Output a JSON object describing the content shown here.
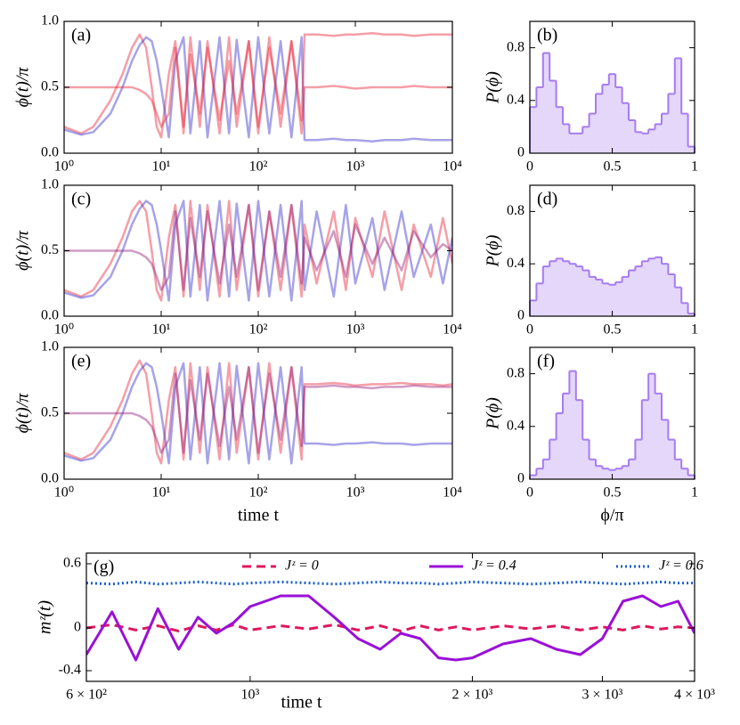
{
  "chart_data": [
    {
      "type": "line",
      "panel_label": "(a)",
      "ylabel": "ϕ(t)/π",
      "xscale": "log",
      "xlim": [
        1,
        10000
      ],
      "ylim": [
        0,
        1
      ],
      "xticks": [
        {
          "value": 1,
          "label": "10⁰"
        },
        {
          "value": 10,
          "label": "10¹"
        },
        {
          "value": 100,
          "label": "10²"
        },
        {
          "value": 1000,
          "label": "10³"
        },
        {
          "value": 10000,
          "label": "10⁴"
        }
      ],
      "yticks": [
        {
          "value": 0,
          "label": "0.0"
        },
        {
          "value": 0.5,
          "label": "0.5"
        },
        {
          "value": 1,
          "label": "1.0"
        }
      ],
      "x": [
        1,
        1.5,
        2,
        3,
        4,
        5,
        6,
        7,
        8,
        9,
        10,
        12,
        14,
        17,
        20,
        25,
        30,
        40,
        50,
        60,
        80,
        100,
        130,
        170,
        220,
        280,
        300,
        400,
        600,
        800,
        1000,
        1500,
        2000,
        3000,
        4000,
        6000,
        8000,
        10000
      ],
      "series": [
        {
          "color": "#e8283c",
          "values": [
            0.2,
            0.15,
            0.2,
            0.4,
            0.6,
            0.8,
            0.9,
            0.8,
            0.5,
            0.2,
            0.12,
            0.6,
            0.85,
            0.15,
            0.88,
            0.2,
            0.85,
            0.15,
            0.88,
            0.2,
            0.85,
            0.15,
            0.88,
            0.2,
            0.85,
            0.15,
            0.5,
            0.5,
            0.51,
            0.5,
            0.49,
            0.5,
            0.5,
            0.5,
            0.51,
            0.5,
            0.5,
            0.5
          ]
        },
        {
          "color": "#3a32cc",
          "values": [
            0.18,
            0.14,
            0.16,
            0.3,
            0.5,
            0.7,
            0.82,
            0.88,
            0.85,
            0.7,
            0.5,
            0.12,
            0.7,
            0.88,
            0.15,
            0.85,
            0.12,
            0.88,
            0.15,
            0.86,
            0.12,
            0.88,
            0.15,
            0.85,
            0.12,
            0.88,
            0.1,
            0.1,
            0.11,
            0.1,
            0.1,
            0.09,
            0.1,
            0.1,
            0.11,
            0.1,
            0.1,
            0.1
          ]
        },
        {
          "color": "#e8283c",
          "values": [
            0.5,
            0.5,
            0.5,
            0.5,
            0.5,
            0.5,
            0.48,
            0.45,
            0.4,
            0.3,
            0.2,
            0.3,
            0.8,
            0.2,
            0.75,
            0.3,
            0.8,
            0.25,
            0.7,
            0.3,
            0.85,
            0.2,
            0.8,
            0.3,
            0.85,
            0.25,
            0.9,
            0.9,
            0.89,
            0.9,
            0.9,
            0.91,
            0.9,
            0.9,
            0.89,
            0.9,
            0.9,
            0.9
          ]
        }
      ]
    },
    {
      "type": "histogram",
      "panel_label": "(b)",
      "ylabel": "P(ϕ)",
      "xlim": [
        0,
        1
      ],
      "ylim": [
        0,
        1
      ],
      "xticks": [
        0,
        0.5,
        1
      ],
      "yticks": [
        0,
        0.4,
        0.8
      ],
      "color": "#a67cf0",
      "bins": [
        0,
        0.04,
        0.08,
        0.12,
        0.16,
        0.2,
        0.24,
        0.28,
        0.32,
        0.36,
        0.4,
        0.44,
        0.48,
        0.52,
        0.56,
        0.6,
        0.64,
        0.68,
        0.72,
        0.76,
        0.8,
        0.84,
        0.88,
        0.92,
        0.96,
        1
      ],
      "values": [
        0.35,
        0.5,
        0.76,
        0.55,
        0.35,
        0.22,
        0.15,
        0.15,
        0.2,
        0.3,
        0.45,
        0.52,
        0.6,
        0.5,
        0.38,
        0.25,
        0.16,
        0.15,
        0.18,
        0.22,
        0.3,
        0.45,
        0.72,
        0.3,
        0.05
      ]
    },
    {
      "type": "line",
      "panel_label": "(c)",
      "ylabel": "ϕ(t)/π",
      "xscale": "log",
      "xlim": [
        1,
        10000
      ],
      "ylim": [
        0,
        1
      ],
      "xticks": [
        {
          "value": 1,
          "label": "10⁰"
        },
        {
          "value": 10,
          "label": "10¹"
        },
        {
          "value": 100,
          "label": "10²"
        },
        {
          "value": 1000,
          "label": "10³"
        },
        {
          "value": 10000,
          "label": "10⁴"
        }
      ],
      "yticks": [
        {
          "value": 0,
          "label": "0.0"
        },
        {
          "value": 0.5,
          "label": "0.5"
        },
        {
          "value": 1,
          "label": "1.0"
        }
      ],
      "x": [
        1,
        1.5,
        2,
        3,
        4,
        5,
        6,
        7,
        8,
        9,
        10,
        12,
        14,
        17,
        20,
        25,
        30,
        40,
        50,
        60,
        80,
        100,
        130,
        170,
        220,
        280,
        300,
        400,
        600,
        800,
        1000,
        1500,
        2000,
        3000,
        4000,
        6000,
        8000,
        10000
      ],
      "series": [
        {
          "color": "#e8283c",
          "values": [
            0.2,
            0.15,
            0.2,
            0.4,
            0.6,
            0.8,
            0.88,
            0.8,
            0.5,
            0.2,
            0.12,
            0.6,
            0.85,
            0.15,
            0.88,
            0.2,
            0.85,
            0.15,
            0.88,
            0.2,
            0.85,
            0.15,
            0.8,
            0.2,
            0.85,
            0.15,
            0.7,
            0.25,
            0.8,
            0.2,
            0.75,
            0.3,
            0.8,
            0.2,
            0.7,
            0.3,
            0.75,
            0.4
          ]
        },
        {
          "color": "#3a32cc",
          "values": [
            0.18,
            0.14,
            0.16,
            0.3,
            0.5,
            0.7,
            0.82,
            0.88,
            0.85,
            0.7,
            0.5,
            0.12,
            0.7,
            0.88,
            0.15,
            0.85,
            0.12,
            0.88,
            0.15,
            0.86,
            0.12,
            0.88,
            0.15,
            0.85,
            0.12,
            0.88,
            0.2,
            0.8,
            0.15,
            0.85,
            0.25,
            0.75,
            0.2,
            0.8,
            0.3,
            0.7,
            0.25,
            0.6
          ]
        },
        {
          "color": "#9a1e7a",
          "values": [
            0.5,
            0.5,
            0.5,
            0.5,
            0.5,
            0.5,
            0.48,
            0.45,
            0.4,
            0.3,
            0.2,
            0.3,
            0.8,
            0.2,
            0.75,
            0.3,
            0.8,
            0.25,
            0.7,
            0.3,
            0.85,
            0.2,
            0.8,
            0.3,
            0.85,
            0.25,
            0.6,
            0.35,
            0.65,
            0.3,
            0.7,
            0.4,
            0.6,
            0.35,
            0.65,
            0.45,
            0.55,
            0.5
          ]
        }
      ]
    },
    {
      "type": "histogram",
      "panel_label": "(d)",
      "ylabel": "P(ϕ)",
      "xlim": [
        0,
        1
      ],
      "ylim": [
        0,
        1
      ],
      "xticks": [
        0,
        0.5,
        1
      ],
      "yticks": [
        0,
        0.4,
        0.8
      ],
      "color": "#a67cf0",
      "bins": [
        0,
        0.04,
        0.08,
        0.12,
        0.16,
        0.2,
        0.24,
        0.28,
        0.32,
        0.36,
        0.4,
        0.44,
        0.48,
        0.52,
        0.56,
        0.6,
        0.64,
        0.68,
        0.72,
        0.76,
        0.8,
        0.84,
        0.88,
        0.92,
        0.96,
        1
      ],
      "values": [
        0.12,
        0.25,
        0.38,
        0.42,
        0.44,
        0.42,
        0.4,
        0.38,
        0.35,
        0.3,
        0.28,
        0.25,
        0.24,
        0.26,
        0.3,
        0.35,
        0.38,
        0.42,
        0.44,
        0.45,
        0.4,
        0.32,
        0.22,
        0.1,
        0.02
      ]
    },
    {
      "type": "line",
      "panel_label": "(e)",
      "ylabel": "ϕ(t)/π",
      "xlabel": "time t",
      "xscale": "log",
      "xlim": [
        1,
        10000
      ],
      "ylim": [
        0,
        1
      ],
      "xticks": [
        {
          "value": 1,
          "label": "10⁰"
        },
        {
          "value": 10,
          "label": "10¹"
        },
        {
          "value": 100,
          "label": "10²"
        },
        {
          "value": 1000,
          "label": "10³"
        },
        {
          "value": 10000,
          "label": "10⁴"
        }
      ],
      "yticks": [
        {
          "value": 0,
          "label": "0.0"
        },
        {
          "value": 0.5,
          "label": "0.5"
        },
        {
          "value": 1,
          "label": "1.0"
        }
      ],
      "x": [
        1,
        1.5,
        2,
        3,
        4,
        5,
        6,
        7,
        8,
        9,
        10,
        12,
        14,
        17,
        20,
        25,
        30,
        40,
        50,
        60,
        80,
        100,
        130,
        170,
        220,
        280,
        300,
        400,
        600,
        800,
        1000,
        1500,
        2000,
        3000,
        4000,
        6000,
        8000,
        10000
      ],
      "series": [
        {
          "color": "#e8283c",
          "values": [
            0.2,
            0.15,
            0.2,
            0.4,
            0.6,
            0.8,
            0.9,
            0.8,
            0.5,
            0.2,
            0.12,
            0.6,
            0.85,
            0.15,
            0.88,
            0.2,
            0.85,
            0.15,
            0.88,
            0.2,
            0.85,
            0.15,
            0.88,
            0.2,
            0.85,
            0.15,
            0.72,
            0.72,
            0.73,
            0.72,
            0.71,
            0.72,
            0.72,
            0.73,
            0.72,
            0.72,
            0.71,
            0.72
          ]
        },
        {
          "color": "#3a32cc",
          "values": [
            0.18,
            0.14,
            0.16,
            0.3,
            0.5,
            0.7,
            0.82,
            0.88,
            0.85,
            0.7,
            0.5,
            0.12,
            0.7,
            0.88,
            0.15,
            0.85,
            0.12,
            0.88,
            0.15,
            0.86,
            0.12,
            0.88,
            0.15,
            0.85,
            0.12,
            0.85,
            0.27,
            0.27,
            0.26,
            0.27,
            0.27,
            0.28,
            0.27,
            0.27,
            0.26,
            0.27,
            0.27,
            0.27
          ]
        },
        {
          "color": "#9a1e7a",
          "values": [
            0.5,
            0.5,
            0.5,
            0.5,
            0.5,
            0.5,
            0.48,
            0.45,
            0.4,
            0.3,
            0.2,
            0.3,
            0.8,
            0.2,
            0.75,
            0.3,
            0.8,
            0.25,
            0.7,
            0.3,
            0.85,
            0.2,
            0.8,
            0.3,
            0.85,
            0.25,
            0.7,
            0.7,
            0.71,
            0.7,
            0.7,
            0.69,
            0.7,
            0.7,
            0.71,
            0.7,
            0.7,
            0.7
          ]
        }
      ]
    },
    {
      "type": "histogram",
      "panel_label": "(f)",
      "ylabel": "P(ϕ)",
      "xlabel": "ϕ/π",
      "xlim": [
        0,
        1
      ],
      "ylim": [
        0,
        1
      ],
      "xticks": [
        0,
        0.5,
        1
      ],
      "yticks": [
        0,
        0.4,
        0.8
      ],
      "color": "#a67cf0",
      "bins": [
        0,
        0.04,
        0.08,
        0.12,
        0.16,
        0.2,
        0.24,
        0.28,
        0.32,
        0.36,
        0.4,
        0.44,
        0.48,
        0.52,
        0.56,
        0.6,
        0.64,
        0.68,
        0.72,
        0.76,
        0.8,
        0.84,
        0.88,
        0.92,
        0.96,
        1
      ],
      "values": [
        0.03,
        0.08,
        0.15,
        0.3,
        0.5,
        0.65,
        0.82,
        0.6,
        0.3,
        0.15,
        0.1,
        0.08,
        0.07,
        0.08,
        0.1,
        0.15,
        0.3,
        0.6,
        0.8,
        0.65,
        0.45,
        0.3,
        0.15,
        0.08,
        0.03
      ]
    },
    {
      "type": "line",
      "panel_label": "(g)",
      "ylabel": "mᶻ(t)",
      "xlabel": "time t",
      "xscale": "log",
      "xlim": [
        600,
        4000
      ],
      "ylim": [
        -0.5,
        0.7
      ],
      "legend": "upper center",
      "xticks": [
        {
          "value": 600,
          "label": "6 × 10²"
        },
        {
          "value": 1000,
          "label": "10³"
        },
        {
          "value": 2000,
          "label": "2 × 10³"
        },
        {
          "value": 3000,
          "label": "3 × 10³"
        },
        {
          "value": 4000,
          "label": "4 × 10³"
        }
      ],
      "yticks": [
        0.6,
        0,
        -0.4
      ],
      "x": [
        600,
        650,
        700,
        750,
        800,
        850,
        900,
        950,
        1000,
        1100,
        1200,
        1300,
        1400,
        1500,
        1600,
        1700,
        1800,
        1900,
        2000,
        2200,
        2400,
        2600,
        2800,
        3000,
        3200,
        3400,
        3600,
        3800,
        4000
      ],
      "series": [
        {
          "name": "Jᶻ = 0",
          "color": "#e0185a",
          "linestyle": "dashed",
          "values": [
            0,
            0.03,
            -0.02,
            0.02,
            -0.03,
            0.02,
            -0.02,
            0.03,
            -0.02,
            0.02,
            -0.01,
            0.03,
            -0.02,
            0.02,
            -0.03,
            0.02,
            -0.02,
            0.01,
            -0.02,
            0.02,
            -0.01,
            0.02,
            -0.02,
            0.01,
            -0.02,
            0.02,
            -0.01,
            0.01,
            0
          ]
        },
        {
          "name": "Jᶻ = 0.4",
          "color": "#9a10d8",
          "linestyle": "solid",
          "values": [
            -0.25,
            0.15,
            -0.3,
            0.18,
            -0.2,
            0.1,
            -0.05,
            0.05,
            0.2,
            0.3,
            0.3,
            0.1,
            -0.1,
            -0.2,
            -0.05,
            -0.1,
            -0.28,
            -0.3,
            -0.28,
            -0.15,
            -0.1,
            -0.2,
            -0.25,
            -0.1,
            0.25,
            0.3,
            0.2,
            0.25,
            -0.05
          ]
        },
        {
          "name": "Jᶻ = 0.6",
          "color": "#1a5fd0",
          "linestyle": "dotted",
          "values": [
            0.42,
            0.41,
            0.43,
            0.41,
            0.42,
            0.43,
            0.42,
            0.41,
            0.42,
            0.43,
            0.42,
            0.41,
            0.42,
            0.43,
            0.42,
            0.42,
            0.41,
            0.42,
            0.43,
            0.42,
            0.41,
            0.42,
            0.43,
            0.42,
            0.41,
            0.42,
            0.43,
            0.42,
            0.42
          ]
        }
      ]
    }
  ]
}
